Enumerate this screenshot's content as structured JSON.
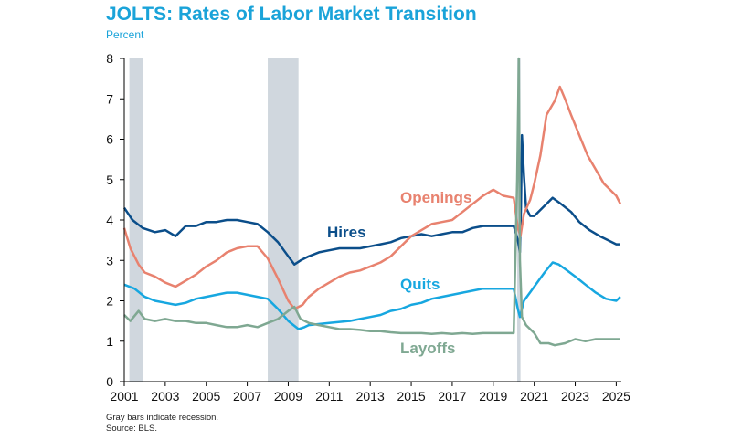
{
  "header": {
    "title": "JOLTS: Rates of Labor Market Transition",
    "subtitle": "Percent"
  },
  "footer": {
    "note1": "Gray bars indicate recession.",
    "note2": "Source: BLS."
  },
  "chart_data": {
    "type": "line",
    "title": "JOLTS: Rates of Labor Market Transition",
    "ylabel": "Percent",
    "xlim": [
      2001.0,
      2025.25
    ],
    "ylim": [
      0,
      8
    ],
    "grid": false,
    "x_ticks": [
      2001,
      2003,
      2005,
      2007,
      2009,
      2011,
      2013,
      2015,
      2017,
      2019,
      2021,
      2023,
      2025
    ],
    "y_ticks": [
      0,
      1,
      2,
      3,
      4,
      5,
      6,
      7,
      8
    ],
    "recessions": [
      [
        2001.25,
        2001.9
      ],
      [
        2008.0,
        2009.5
      ],
      [
        2020.17,
        2020.33
      ]
    ],
    "series": [
      {
        "name": "Hires",
        "color": "#0b4e8a",
        "points": [
          [
            2001.0,
            4.3
          ],
          [
            2001.4,
            4.0
          ],
          [
            2001.9,
            3.8
          ],
          [
            2002.5,
            3.7
          ],
          [
            2003.0,
            3.75
          ],
          [
            2003.5,
            3.6
          ],
          [
            2004.0,
            3.85
          ],
          [
            2004.5,
            3.85
          ],
          [
            2005.0,
            3.95
          ],
          [
            2005.5,
            3.95
          ],
          [
            2006.0,
            4.0
          ],
          [
            2006.5,
            4.0
          ],
          [
            2007.0,
            3.95
          ],
          [
            2007.5,
            3.9
          ],
          [
            2008.0,
            3.7
          ],
          [
            2008.5,
            3.45
          ],
          [
            2009.0,
            3.1
          ],
          [
            2009.3,
            2.9
          ],
          [
            2009.6,
            3.0
          ],
          [
            2010.0,
            3.1
          ],
          [
            2010.5,
            3.2
          ],
          [
            2011.0,
            3.25
          ],
          [
            2011.5,
            3.3
          ],
          [
            2012.0,
            3.3
          ],
          [
            2012.5,
            3.3
          ],
          [
            2013.0,
            3.35
          ],
          [
            2013.5,
            3.4
          ],
          [
            2014.0,
            3.45
          ],
          [
            2014.5,
            3.55
          ],
          [
            2015.0,
            3.6
          ],
          [
            2015.5,
            3.65
          ],
          [
            2016.0,
            3.6
          ],
          [
            2016.5,
            3.65
          ],
          [
            2017.0,
            3.7
          ],
          [
            2017.5,
            3.7
          ],
          [
            2018.0,
            3.8
          ],
          [
            2018.5,
            3.85
          ],
          [
            2019.0,
            3.85
          ],
          [
            2019.5,
            3.85
          ],
          [
            2020.0,
            3.85
          ],
          [
            2020.2,
            3.5
          ],
          [
            2020.3,
            3.2
          ],
          [
            2020.35,
            4.3
          ],
          [
            2020.4,
            6.1
          ],
          [
            2020.5,
            5.1
          ],
          [
            2020.6,
            4.3
          ],
          [
            2020.8,
            4.1
          ],
          [
            2021.0,
            4.1
          ],
          [
            2021.5,
            4.35
          ],
          [
            2021.9,
            4.55
          ],
          [
            2022.3,
            4.4
          ],
          [
            2022.8,
            4.2
          ],
          [
            2023.2,
            3.95
          ],
          [
            2023.7,
            3.75
          ],
          [
            2024.2,
            3.6
          ],
          [
            2024.6,
            3.5
          ],
          [
            2025.0,
            3.4
          ],
          [
            2025.2,
            3.4
          ]
        ]
      },
      {
        "name": "Openings",
        "color": "#e8826f",
        "points": [
          [
            2001.0,
            3.8
          ],
          [
            2001.3,
            3.3
          ],
          [
            2001.7,
            2.9
          ],
          [
            2002.0,
            2.7
          ],
          [
            2002.5,
            2.6
          ],
          [
            2003.0,
            2.45
          ],
          [
            2003.5,
            2.35
          ],
          [
            2004.0,
            2.5
          ],
          [
            2004.5,
            2.65
          ],
          [
            2005.0,
            2.85
          ],
          [
            2005.5,
            3.0
          ],
          [
            2006.0,
            3.2
          ],
          [
            2006.5,
            3.3
          ],
          [
            2007.0,
            3.35
          ],
          [
            2007.5,
            3.35
          ],
          [
            2008.0,
            3.05
          ],
          [
            2008.5,
            2.55
          ],
          [
            2009.0,
            2.0
          ],
          [
            2009.3,
            1.8
          ],
          [
            2009.7,
            1.9
          ],
          [
            2010.0,
            2.1
          ],
          [
            2010.5,
            2.3
          ],
          [
            2011.0,
            2.45
          ],
          [
            2011.5,
            2.6
          ],
          [
            2012.0,
            2.7
          ],
          [
            2012.5,
            2.75
          ],
          [
            2013.0,
            2.85
          ],
          [
            2013.5,
            2.95
          ],
          [
            2014.0,
            3.1
          ],
          [
            2014.5,
            3.35
          ],
          [
            2015.0,
            3.6
          ],
          [
            2015.5,
            3.75
          ],
          [
            2016.0,
            3.9
          ],
          [
            2016.5,
            3.95
          ],
          [
            2017.0,
            4.0
          ],
          [
            2017.5,
            4.2
          ],
          [
            2018.0,
            4.4
          ],
          [
            2018.5,
            4.6
          ],
          [
            2019.0,
            4.75
          ],
          [
            2019.5,
            4.6
          ],
          [
            2020.0,
            4.55
          ],
          [
            2020.2,
            3.8
          ],
          [
            2020.33,
            3.6
          ],
          [
            2020.5,
            4.15
          ],
          [
            2020.8,
            4.5
          ],
          [
            2021.0,
            4.9
          ],
          [
            2021.3,
            5.6
          ],
          [
            2021.6,
            6.6
          ],
          [
            2022.0,
            6.95
          ],
          [
            2022.25,
            7.3
          ],
          [
            2022.5,
            7.0
          ],
          [
            2022.8,
            6.6
          ],
          [
            2023.2,
            6.1
          ],
          [
            2023.6,
            5.6
          ],
          [
            2024.0,
            5.25
          ],
          [
            2024.4,
            4.9
          ],
          [
            2024.8,
            4.7
          ],
          [
            2025.0,
            4.6
          ],
          [
            2025.2,
            4.4
          ]
        ]
      },
      {
        "name": "Quits",
        "color": "#17a7e0",
        "points": [
          [
            2001.0,
            2.4
          ],
          [
            2001.5,
            2.3
          ],
          [
            2002.0,
            2.1
          ],
          [
            2002.5,
            2.0
          ],
          [
            2003.0,
            1.95
          ],
          [
            2003.5,
            1.9
          ],
          [
            2004.0,
            1.95
          ],
          [
            2004.5,
            2.05
          ],
          [
            2005.0,
            2.1
          ],
          [
            2005.5,
            2.15
          ],
          [
            2006.0,
            2.2
          ],
          [
            2006.5,
            2.2
          ],
          [
            2007.0,
            2.15
          ],
          [
            2007.5,
            2.1
          ],
          [
            2008.0,
            2.05
          ],
          [
            2008.5,
            1.8
          ],
          [
            2009.0,
            1.5
          ],
          [
            2009.5,
            1.3
          ],
          [
            2009.8,
            1.35
          ],
          [
            2010.0,
            1.4
          ],
          [
            2011.0,
            1.45
          ],
          [
            2012.0,
            1.5
          ],
          [
            2012.5,
            1.55
          ],
          [
            2013.0,
            1.6
          ],
          [
            2013.5,
            1.65
          ],
          [
            2014.0,
            1.75
          ],
          [
            2014.5,
            1.8
          ],
          [
            2015.0,
            1.9
          ],
          [
            2015.5,
            1.95
          ],
          [
            2016.0,
            2.05
          ],
          [
            2016.5,
            2.1
          ],
          [
            2017.0,
            2.15
          ],
          [
            2017.5,
            2.2
          ],
          [
            2018.0,
            2.25
          ],
          [
            2018.5,
            2.3
          ],
          [
            2019.0,
            2.3
          ],
          [
            2019.5,
            2.3
          ],
          [
            2020.0,
            2.3
          ],
          [
            2020.2,
            1.8
          ],
          [
            2020.3,
            1.6
          ],
          [
            2020.5,
            2.0
          ],
          [
            2021.0,
            2.35
          ],
          [
            2021.5,
            2.7
          ],
          [
            2021.9,
            2.95
          ],
          [
            2022.2,
            2.9
          ],
          [
            2022.6,
            2.75
          ],
          [
            2023.0,
            2.6
          ],
          [
            2023.5,
            2.4
          ],
          [
            2024.0,
            2.2
          ],
          [
            2024.5,
            2.05
          ],
          [
            2025.0,
            2.0
          ],
          [
            2025.2,
            2.1
          ]
        ]
      },
      {
        "name": "Layoffs",
        "color": "#7fa892",
        "points": [
          [
            2001.0,
            1.65
          ],
          [
            2001.3,
            1.5
          ],
          [
            2001.7,
            1.75
          ],
          [
            2002.0,
            1.55
          ],
          [
            2002.5,
            1.5
          ],
          [
            2003.0,
            1.55
          ],
          [
            2003.5,
            1.5
          ],
          [
            2004.0,
            1.5
          ],
          [
            2004.5,
            1.45
          ],
          [
            2005.0,
            1.45
          ],
          [
            2005.5,
            1.4
          ],
          [
            2006.0,
            1.35
          ],
          [
            2006.5,
            1.35
          ],
          [
            2007.0,
            1.4
          ],
          [
            2007.5,
            1.35
          ],
          [
            2008.0,
            1.45
          ],
          [
            2008.5,
            1.55
          ],
          [
            2009.0,
            1.75
          ],
          [
            2009.3,
            1.85
          ],
          [
            2009.6,
            1.55
          ],
          [
            2010.0,
            1.45
          ],
          [
            2010.5,
            1.4
          ],
          [
            2011.0,
            1.35
          ],
          [
            2011.5,
            1.3
          ],
          [
            2012.0,
            1.3
          ],
          [
            2012.5,
            1.28
          ],
          [
            2013.0,
            1.25
          ],
          [
            2013.5,
            1.25
          ],
          [
            2014.0,
            1.22
          ],
          [
            2014.5,
            1.2
          ],
          [
            2015.0,
            1.2
          ],
          [
            2015.5,
            1.2
          ],
          [
            2016.0,
            1.18
          ],
          [
            2016.5,
            1.2
          ],
          [
            2017.0,
            1.18
          ],
          [
            2017.5,
            1.2
          ],
          [
            2018.0,
            1.18
          ],
          [
            2018.5,
            1.2
          ],
          [
            2019.0,
            1.2
          ],
          [
            2019.5,
            1.2
          ],
          [
            2020.0,
            1.2
          ],
          [
            2020.17,
            5.0
          ],
          [
            2020.25,
            8.0
          ],
          [
            2020.3,
            3.0
          ],
          [
            2020.4,
            1.6
          ],
          [
            2020.6,
            1.4
          ],
          [
            2020.8,
            1.3
          ],
          [
            2021.0,
            1.2
          ],
          [
            2021.3,
            0.95
          ],
          [
            2021.7,
            0.95
          ],
          [
            2022.0,
            0.9
          ],
          [
            2022.5,
            0.95
          ],
          [
            2023.0,
            1.05
          ],
          [
            2023.5,
            1.0
          ],
          [
            2024.0,
            1.05
          ],
          [
            2024.5,
            1.05
          ],
          [
            2025.0,
            1.05
          ],
          [
            2025.2,
            1.05
          ]
        ]
      }
    ]
  }
}
